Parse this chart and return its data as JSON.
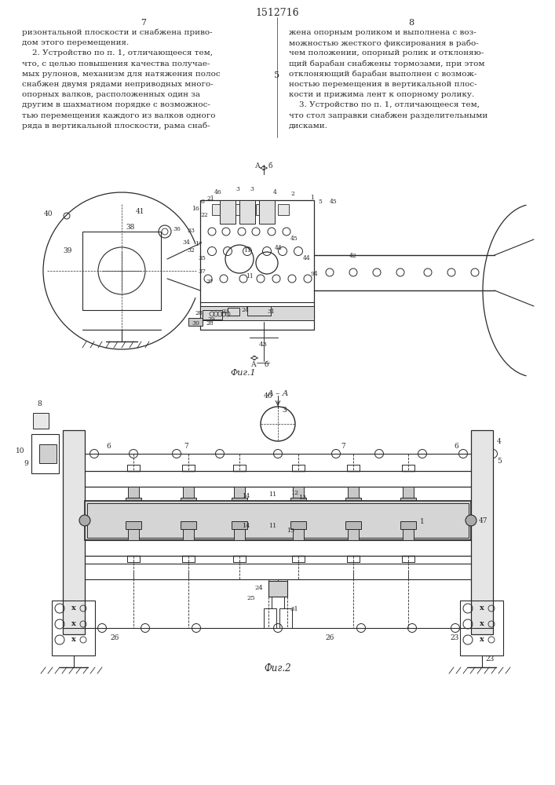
{
  "title": "1512716",
  "fig_width": 7.07,
  "fig_height": 10.0,
  "bg_color": "#ffffff",
  "line_color": "#2a2a2a",
  "text_color": "#2a2a2a",
  "page_number_left": "7",
  "page_number_right": "8",
  "col1_text": [
    "ризонтальной плоскости и снабжена приво-",
    "дом этого перемещения.",
    "    2. Устройство по п. 1, отличающееся тем,",
    "что, с целью повышения качества получае-",
    "мых рулонов, механизм для натяжения полос",
    "снабжен двумя рядами неприводных много-",
    "опорных валков, расположенных один за",
    "другим в шахматном порядке с возможнос-",
    "тью перемещения каждого из валков одного",
    "ряда в вертикальной плоскости, рама снаб-"
  ],
  "col2_text": [
    "жена опорным роликом и выполнена с воз-",
    "можностью жесткого фиксирования в рабо-",
    "чем положении, опорный ролик и отклоняю-",
    "щий барабан снабжены тормозами, при этом",
    "отклоняющий барабан выполнен с возмож-",
    "ностью перемещения в вертикальной плос-",
    "кости и прижима лент к опорному ролику.",
    "    3. Устройство по п. 1, отличающееся тем,",
    "что стол заправки снабжен разделительными",
    "дисками."
  ],
  "fig1_caption": "Фиг.1",
  "fig2_caption": "Фиг.2",
  "middle_number": "5"
}
